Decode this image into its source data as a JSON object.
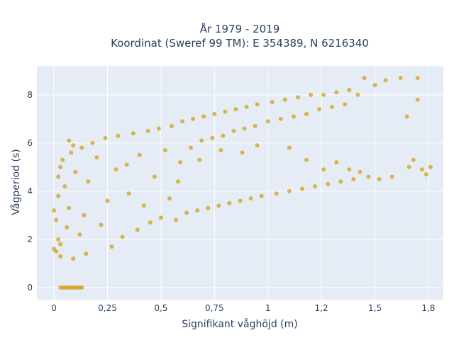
{
  "chart_data": {
    "type": "scatter",
    "title_line1": "År 1979 - 2019",
    "title_line2": "Koordinat (Sweref 99 TM): E 354389, N 6216340",
    "xlabel": "Signifikant våghöjd (m)",
    "ylabel": "Vågperiod (s)",
    "xlim": [
      -0.08,
      1.82
    ],
    "ylim": [
      -0.5,
      9.2
    ],
    "x_ticks": [
      {
        "value": 0,
        "label": "0"
      },
      {
        "value": 0.25,
        "label": "0,25"
      },
      {
        "value": 0.5,
        "label": "0,5"
      },
      {
        "value": 0.75,
        "label": "0,75"
      },
      {
        "value": 1.0,
        "label": "1"
      },
      {
        "value": 1.25,
        "label": "1,2"
      },
      {
        "value": 1.5,
        "label": "1,5"
      },
      {
        "value": 1.75,
        "label": "1,8"
      }
    ],
    "y_ticks": [
      {
        "value": 0,
        "label": "0"
      },
      {
        "value": 2,
        "label": "2"
      },
      {
        "value": 4,
        "label": "4"
      },
      {
        "value": 6,
        "label": "6"
      },
      {
        "value": 8,
        "label": "8"
      }
    ],
    "grid": true,
    "marker_color": "#d4a520",
    "plot_bg": "#e5ecf6",
    "series": [
      {
        "values": [
          {
            "x": 0.03,
            "y": 0
          },
          {
            "x": 0.04,
            "y": 0
          },
          {
            "x": 0.05,
            "y": 0
          },
          {
            "x": 0.06,
            "y": 0
          },
          {
            "x": 0.07,
            "y": 0
          },
          {
            "x": 0.08,
            "y": 0
          },
          {
            "x": 0.09,
            "y": 0
          },
          {
            "x": 0.1,
            "y": 0
          },
          {
            "x": 0.11,
            "y": 0
          },
          {
            "x": 0.12,
            "y": 0
          },
          {
            "x": 0.13,
            "y": 0
          },
          {
            "x": 0.0,
            "y": 1.6
          },
          {
            "x": 0.01,
            "y": 1.5
          },
          {
            "x": 0.0,
            "y": 3.2
          },
          {
            "x": 0.01,
            "y": 2.8
          },
          {
            "x": 0.02,
            "y": 4.6
          },
          {
            "x": 0.02,
            "y": 2.0
          },
          {
            "x": 0.03,
            "y": 1.3
          },
          {
            "x": 0.02,
            "y": 3.8
          },
          {
            "x": 0.03,
            "y": 5.0
          },
          {
            "x": 0.04,
            "y": 5.3
          },
          {
            "x": 0.03,
            "y": 1.8
          },
          {
            "x": 0.05,
            "y": 4.2
          },
          {
            "x": 0.06,
            "y": 2.5
          },
          {
            "x": 0.07,
            "y": 3.3
          },
          {
            "x": 0.08,
            "y": 5.6
          },
          {
            "x": 0.09,
            "y": 1.2
          },
          {
            "x": 0.1,
            "y": 4.8
          },
          {
            "x": 0.12,
            "y": 2.2
          },
          {
            "x": 0.13,
            "y": 5.8
          },
          {
            "x": 0.14,
            "y": 3.0
          },
          {
            "x": 0.15,
            "y": 1.4
          },
          {
            "x": 0.16,
            "y": 4.4
          },
          {
            "x": 0.07,
            "y": 6.1
          },
          {
            "x": 0.09,
            "y": 5.9
          },
          {
            "x": 0.18,
            "y": 6.0
          },
          {
            "x": 0.2,
            "y": 5.4
          },
          {
            "x": 0.22,
            "y": 2.6
          },
          {
            "x": 0.24,
            "y": 6.2
          },
          {
            "x": 0.25,
            "y": 3.6
          },
          {
            "x": 0.27,
            "y": 1.7
          },
          {
            "x": 0.29,
            "y": 4.9
          },
          {
            "x": 0.3,
            "y": 6.3
          },
          {
            "x": 0.32,
            "y": 2.1
          },
          {
            "x": 0.34,
            "y": 5.1
          },
          {
            "x": 0.35,
            "y": 3.9
          },
          {
            "x": 0.37,
            "y": 6.4
          },
          {
            "x": 0.39,
            "y": 2.4
          },
          {
            "x": 0.4,
            "y": 5.5
          },
          {
            "x": 0.42,
            "y": 3.4
          },
          {
            "x": 0.44,
            "y": 6.5
          },
          {
            "x": 0.45,
            "y": 2.7
          },
          {
            "x": 0.47,
            "y": 4.6
          },
          {
            "x": 0.49,
            "y": 6.6
          },
          {
            "x": 0.5,
            "y": 2.9
          },
          {
            "x": 0.52,
            "y": 5.7
          },
          {
            "x": 0.54,
            "y": 3.7
          },
          {
            "x": 0.55,
            "y": 6.7
          },
          {
            "x": 0.57,
            "y": 2.8
          },
          {
            "x": 0.59,
            "y": 5.2
          },
          {
            "x": 0.6,
            "y": 6.9
          },
          {
            "x": 0.62,
            "y": 3.1
          },
          {
            "x": 0.64,
            "y": 5.8
          },
          {
            "x": 0.65,
            "y": 7.0
          },
          {
            "x": 0.67,
            "y": 3.2
          },
          {
            "x": 0.69,
            "y": 6.1
          },
          {
            "x": 0.7,
            "y": 7.1
          },
          {
            "x": 0.72,
            "y": 3.3
          },
          {
            "x": 0.74,
            "y": 6.2
          },
          {
            "x": 0.75,
            "y": 7.2
          },
          {
            "x": 0.77,
            "y": 3.4
          },
          {
            "x": 0.79,
            "y": 6.3
          },
          {
            "x": 0.8,
            "y": 7.3
          },
          {
            "x": 0.82,
            "y": 3.5
          },
          {
            "x": 0.84,
            "y": 6.5
          },
          {
            "x": 0.85,
            "y": 7.4
          },
          {
            "x": 0.87,
            "y": 3.6
          },
          {
            "x": 0.89,
            "y": 6.6
          },
          {
            "x": 0.9,
            "y": 7.5
          },
          {
            "x": 0.92,
            "y": 3.7
          },
          {
            "x": 0.94,
            "y": 6.7
          },
          {
            "x": 0.95,
            "y": 7.6
          },
          {
            "x": 0.97,
            "y": 3.8
          },
          {
            "x": 1.0,
            "y": 6.9
          },
          {
            "x": 1.02,
            "y": 7.7
          },
          {
            "x": 1.04,
            "y": 3.9
          },
          {
            "x": 1.06,
            "y": 7.0
          },
          {
            "x": 1.08,
            "y": 7.8
          },
          {
            "x": 1.1,
            "y": 4.0
          },
          {
            "x": 1.12,
            "y": 7.1
          },
          {
            "x": 1.14,
            "y": 7.9
          },
          {
            "x": 1.16,
            "y": 4.1
          },
          {
            "x": 1.18,
            "y": 7.2
          },
          {
            "x": 1.2,
            "y": 8.0
          },
          {
            "x": 1.22,
            "y": 4.2
          },
          {
            "x": 1.24,
            "y": 7.4
          },
          {
            "x": 1.26,
            "y": 8.0
          },
          {
            "x": 1.28,
            "y": 4.3
          },
          {
            "x": 1.3,
            "y": 7.5
          },
          {
            "x": 1.32,
            "y": 8.1
          },
          {
            "x": 1.34,
            "y": 4.4
          },
          {
            "x": 1.36,
            "y": 7.6
          },
          {
            "x": 1.38,
            "y": 8.2
          },
          {
            "x": 1.4,
            "y": 4.5
          },
          {
            "x": 1.42,
            "y": 8.0
          },
          {
            "x": 1.45,
            "y": 8.7
          },
          {
            "x": 1.47,
            "y": 4.6
          },
          {
            "x": 1.5,
            "y": 8.4
          },
          {
            "x": 1.52,
            "y": 4.5
          },
          {
            "x": 1.55,
            "y": 8.6
          },
          {
            "x": 1.58,
            "y": 4.6
          },
          {
            "x": 1.62,
            "y": 8.7
          },
          {
            "x": 1.65,
            "y": 7.1
          },
          {
            "x": 1.66,
            "y": 5.0
          },
          {
            "x": 1.68,
            "y": 5.3
          },
          {
            "x": 1.7,
            "y": 7.8
          },
          {
            "x": 1.72,
            "y": 4.9
          },
          {
            "x": 1.74,
            "y": 4.7
          },
          {
            "x": 1.76,
            "y": 5.0
          },
          {
            "x": 1.7,
            "y": 8.7
          },
          {
            "x": 1.43,
            "y": 4.8
          },
          {
            "x": 1.38,
            "y": 4.9
          },
          {
            "x": 1.32,
            "y": 5.2
          },
          {
            "x": 1.26,
            "y": 4.9
          },
          {
            "x": 1.18,
            "y": 5.3
          },
          {
            "x": 1.1,
            "y": 5.8
          },
          {
            "x": 0.95,
            "y": 5.9
          },
          {
            "x": 0.88,
            "y": 5.6
          },
          {
            "x": 0.78,
            "y": 5.7
          },
          {
            "x": 0.68,
            "y": 5.3
          },
          {
            "x": 0.58,
            "y": 4.4
          }
        ]
      }
    ]
  }
}
